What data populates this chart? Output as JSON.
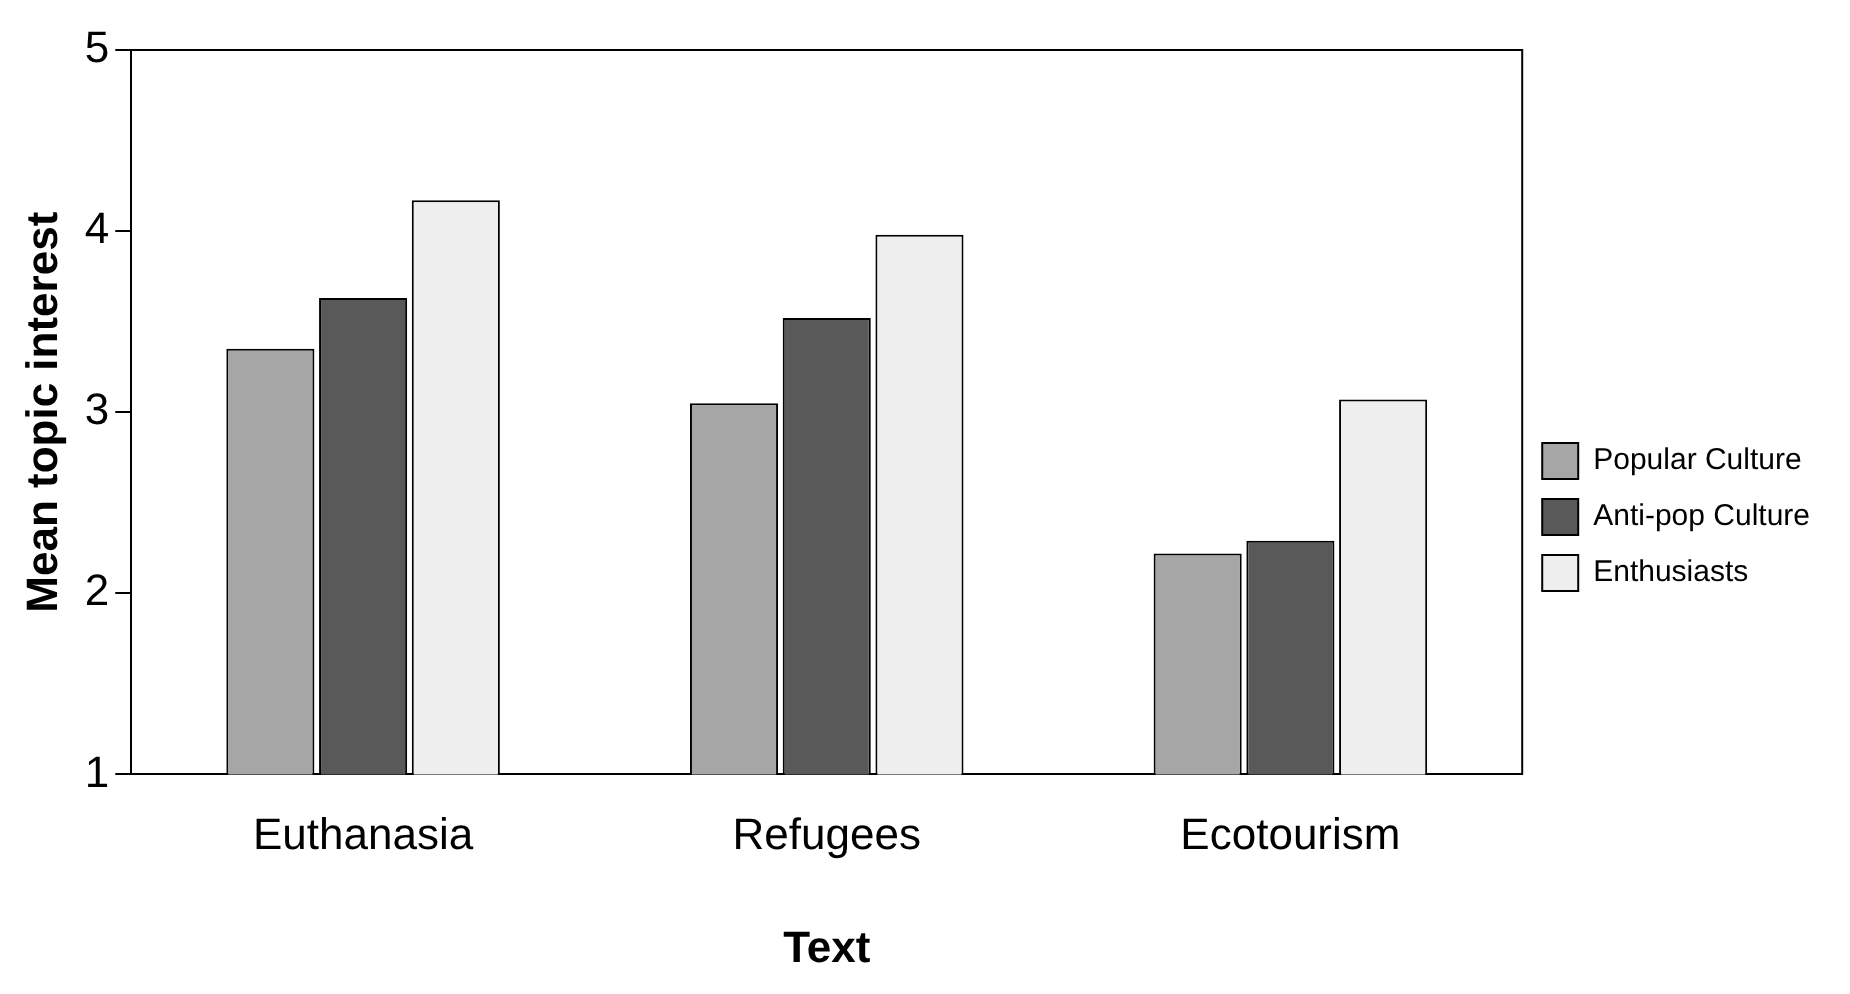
{
  "chart_data": {
    "type": "bar",
    "xlabel": "Text",
    "ylabel": "Mean topic interest",
    "categories": [
      "Euthanasia",
      "Refugees",
      "Ecotourism"
    ],
    "series": [
      {
        "name": "Popular Culture",
        "color": "#a6a6a6",
        "values": [
          3.35,
          3.05,
          2.22
        ]
      },
      {
        "name": "Anti-pop Culture",
        "color": "#595959",
        "values": [
          3.63,
          3.52,
          2.29
        ]
      },
      {
        "name": "Enthusiasts",
        "color": "#eeeeee",
        "values": [
          4.17,
          3.98,
          3.07
        ]
      }
    ],
    "ylim": [
      1,
      5
    ],
    "yticks": [
      1,
      2,
      3,
      4,
      5
    ],
    "grid": false,
    "legend": "right"
  }
}
